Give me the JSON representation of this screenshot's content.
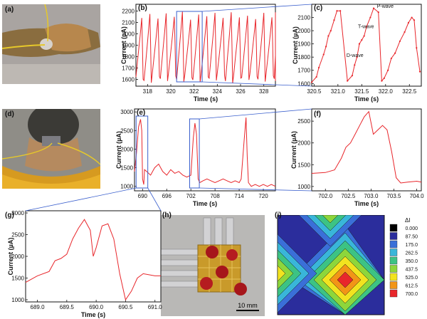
{
  "panels": {
    "a": "(a)",
    "b": "(b)",
    "c": "(c)",
    "d": "(d)",
    "e": "(e)",
    "f": "(f)",
    "g": "(g)",
    "h": "(h)",
    "i": "(i)"
  },
  "colors": {
    "series": "#e8262b",
    "zoom_box": "#3a5fcd",
    "axis": "#111111"
  },
  "chart_data": [
    {
      "id": "b",
      "type": "line",
      "xlabel": "Time (s)",
      "ylabel": "Current (µA)",
      "xlim": [
        317.0,
        329.0
      ],
      "ylim": [
        1540,
        2260
      ],
      "xticks": [
        "318",
        "320",
        "322",
        "324",
        "326",
        "328"
      ],
      "yticks": [
        "1600",
        "1700",
        "1800",
        "1900",
        "2000",
        "2100",
        "2200"
      ],
      "series": [
        {
          "x": [],
          "values": []
        }
      ],
      "pulse_period_s": 0.7,
      "pulse_low": 1620,
      "pulse_high": 2160
    },
    {
      "id": "c",
      "type": "line",
      "xlabel": "Time (s)",
      "ylabel": "Current (µA)",
      "xlim": [
        320.45,
        322.75
      ],
      "ylim": [
        1580,
        2200
      ],
      "xticks": [
        "320.5",
        "321.0",
        "321.5",
        "322.0",
        "322.5"
      ],
      "yticks": [
        "1600",
        "1700",
        "1800",
        "1900",
        "2000",
        "2100"
      ],
      "annotations": [
        "P-wave",
        "T-wave",
        "D-wave"
      ],
      "series": [
        {
          "x": [
            320.45,
            320.55,
            320.6,
            320.7,
            320.75,
            320.8,
            320.85,
            320.92,
            320.98,
            321.05,
            321.2,
            321.3,
            321.35,
            321.4,
            321.45,
            321.5,
            321.55,
            321.6,
            321.68,
            321.75,
            321.85,
            321.92,
            321.97,
            322.05,
            322.12,
            322.2,
            322.3,
            322.4,
            322.48,
            322.55,
            322.6,
            322.65,
            322.72
          ],
          "values": [
            1610,
            1650,
            1720,
            1820,
            1880,
            1960,
            2000,
            2080,
            2150,
            2150,
            1620,
            1660,
            1740,
            1800,
            1900,
            1930,
            1960,
            2030,
            2100,
            2170,
            2140,
            1620,
            1640,
            1700,
            1790,
            1830,
            1920,
            1990,
            2060,
            2100,
            2080,
            1870,
            1690
          ]
        }
      ]
    },
    {
      "id": "e",
      "type": "line",
      "xlabel": "Time (s)",
      "ylabel": "Current (µA)",
      "xlim": [
        688.0,
        723.0
      ],
      "ylim": [
        880,
        3080
      ],
      "xticks": [
        "690",
        "696",
        "702",
        "708",
        "714",
        "720"
      ],
      "yticks": [
        "1000",
        "1500",
        "2000",
        "2500",
        "3000"
      ],
      "series": [
        {
          "x": [
            688.0,
            688.5,
            689.0,
            689.5,
            689.8,
            690.0,
            690.3,
            690.5,
            691.0,
            692.0,
            693.0,
            694.0,
            695.0,
            696.0,
            697.0,
            698.0,
            699.0,
            700.0,
            701.0,
            702.0,
            702.6,
            703.0,
            703.4,
            703.8,
            704.2,
            705.0,
            706.0,
            707.0,
            708.0,
            709.0,
            710.0,
            711.0,
            712.0,
            713.0,
            714.0,
            714.5,
            715.2,
            715.7,
            716.0,
            716.3,
            717.0,
            718.0,
            719.0,
            720.0,
            721.0,
            722.0,
            723.0
          ],
          "values": [
            1400,
            1900,
            2600,
            2800,
            2500,
            1200,
            1050,
            1450,
            1400,
            1300,
            1500,
            1600,
            1400,
            1300,
            1450,
            1350,
            1400,
            1300,
            1250,
            1300,
            2300,
            2700,
            2400,
            1200,
            1100,
            1150,
            1200,
            1150,
            1100,
            1150,
            1200,
            1150,
            1100,
            1150,
            1100,
            1200,
            2200,
            2850,
            1800,
            1100,
            1000,
            1050,
            1000,
            1050,
            1000,
            1050,
            1000
          ]
        }
      ]
    },
    {
      "id": "f",
      "type": "line",
      "xlabel": "Time (s)",
      "ylabel": "Current (µA)",
      "xlim": [
        701.7,
        704.1
      ],
      "ylim": [
        900,
        2780
      ],
      "xticks": [
        "702.0",
        "702.5",
        "703.0",
        "703.5",
        "704.0"
      ],
      "yticks": [
        "1000",
        "1500",
        "2000",
        "2500"
      ],
      "series": [
        {
          "x": [
            701.7,
            702.0,
            702.2,
            702.35,
            702.45,
            702.55,
            702.65,
            702.75,
            702.85,
            702.95,
            703.05,
            703.15,
            703.25,
            703.35,
            703.45,
            703.55,
            703.65,
            703.8,
            704.0,
            704.1
          ],
          "values": [
            1300,
            1320,
            1380,
            1650,
            1900,
            2000,
            2200,
            2400,
            2600,
            2720,
            2200,
            2300,
            2400,
            2300,
            1800,
            1200,
            1080,
            1100,
            1120,
            1100
          ]
        }
      ]
    },
    {
      "id": "g",
      "type": "line",
      "xlabel": "Time (s)",
      "ylabel": "Current (µA)",
      "xlim": [
        688.8,
        691.1
      ],
      "ylim": [
        950,
        3050
      ],
      "xticks": [
        "689.0",
        "689.5",
        "690.0",
        "690.5",
        "691.0"
      ],
      "yticks": [
        "1000",
        "1500",
        "2000",
        "2500",
        "3000"
      ],
      "series": [
        {
          "x": [
            688.8,
            689.0,
            689.2,
            689.3,
            689.4,
            689.5,
            689.6,
            689.7,
            689.8,
            689.9,
            689.95,
            690.0,
            690.1,
            690.2,
            690.3,
            690.4,
            690.5,
            690.6,
            690.7,
            690.8,
            691.0,
            691.1
          ],
          "values": [
            1400,
            1550,
            1650,
            1900,
            1950,
            2050,
            2400,
            2650,
            2850,
            2600,
            2000,
            2200,
            2700,
            2750,
            2400,
            1600,
            1000,
            1200,
            1500,
            1600,
            1550,
            1550
          ]
        }
      ]
    },
    {
      "id": "i",
      "type": "heatmap",
      "legend_title": "ΔI",
      "levels": [
        "0.000",
        "87.50",
        "175.0",
        "262.5",
        "350.0",
        "437.5",
        "525.0",
        "612.5",
        "700.0"
      ],
      "level_colors": [
        "#000000",
        "#2b2d9c",
        "#3a6fd8",
        "#39b6d9",
        "#3cc384",
        "#8dd63b",
        "#f2e31f",
        "#f29517",
        "#e8262b"
      ]
    }
  ],
  "photo_h": {
    "scalebar_label": "10 mm"
  }
}
